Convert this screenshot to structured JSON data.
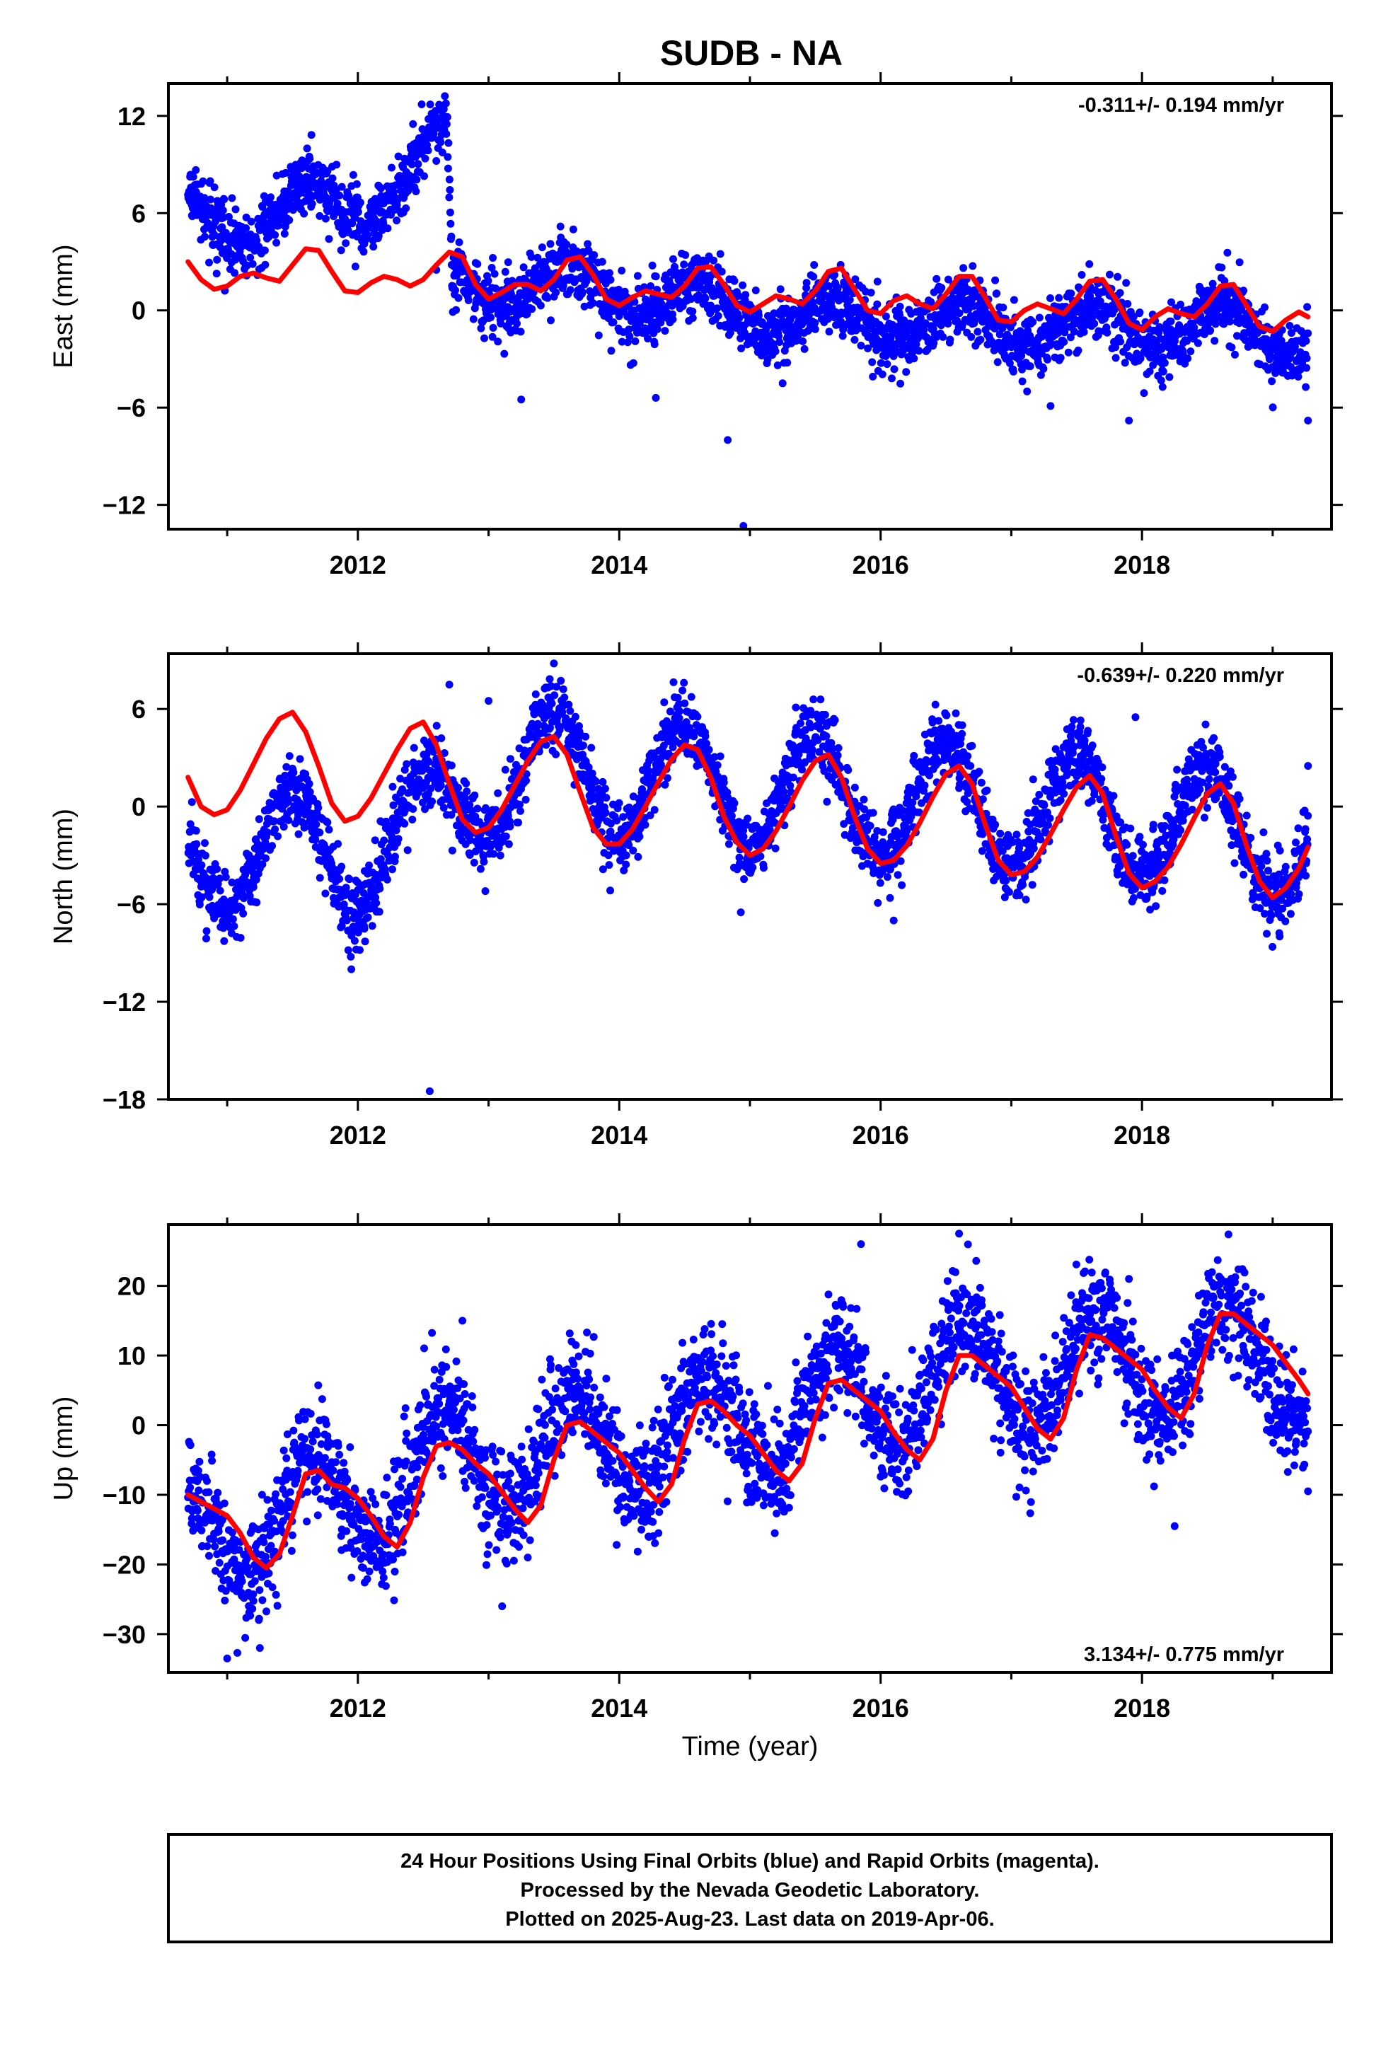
{
  "title": "SUDB - NA",
  "colors": {
    "final_orbits": "#0000ff",
    "fit": "#ff0000",
    "frame": "#000000"
  },
  "footer": {
    "line1": "24 Hour Positions Using Final Orbits (blue) and Rapid Orbits (magenta).",
    "line2": "Processed by the Nevada Geodetic Laboratory.",
    "line3": "Plotted on 2025-Aug-23. Last data on 2019-Apr-06."
  },
  "chart_data": [
    {
      "type": "scatter",
      "ylabel": "East (mm)",
      "xlabel": "",
      "rate": "-0.311+/- 0.194 mm/yr",
      "rate_position": "top-right",
      "xlim": [
        2010.55,
        2019.45
      ],
      "ylim": [
        -13.5,
        14
      ],
      "x_ticks": [
        "2012",
        "2014",
        "2016",
        "2018"
      ],
      "y_ticks": [
        "12",
        "6",
        "0",
        "-6",
        "-12"
      ],
      "data_range": [
        2010.7,
        2019.27
      ],
      "trend": [
        [
          2010.7,
          6.0
        ],
        [
          2011.2,
          5.2
        ],
        [
          2011.6,
          6.6
        ],
        [
          2012.0,
          6.3
        ],
        [
          2012.3,
          7.8
        ],
        [
          2012.68,
          10.5
        ],
        [
          2012.72,
          1.5
        ],
        [
          2013.5,
          1.7
        ],
        [
          2014.5,
          0.6
        ],
        [
          2015.5,
          -0.6
        ],
        [
          2016.5,
          -0.8
        ],
        [
          2017.5,
          -1.0
        ],
        [
          2018.5,
          -1.0
        ],
        [
          2019.27,
          -1.7
        ]
      ],
      "seasonal": {
        "amp": 1.3,
        "phase": 0.62
      },
      "scatter_sd": 1.0,
      "series": [
        {
          "name": "Final Orbits",
          "kind": "points",
          "outliers": [
            [
              2013.25,
              -5.5
            ],
            [
              2014.28,
              -5.4
            ],
            [
              2014.83,
              -8.0
            ],
            [
              2014.95,
              -13.3
            ],
            [
              2015.25,
              -4.5
            ],
            [
              2017.3,
              -5.9
            ],
            [
              2017.9,
              -6.8
            ],
            [
              2019.27,
              -6.8
            ],
            [
              2012.6,
              2.5
            ]
          ]
        },
        {
          "name": "Model Fit",
          "kind": "line",
          "x": [
            2010.7,
            2010.8,
            2010.9,
            2011.0,
            2011.1,
            2011.2,
            2011.3,
            2011.4,
            2011.5,
            2011.6,
            2011.7,
            2011.8,
            2011.9,
            2012.0,
            2012.1,
            2012.2,
            2012.3,
            2012.4,
            2012.5,
            2012.6,
            2012.7,
            2012.8,
            2012.9,
            2013.0,
            2013.1,
            2013.2,
            2013.3,
            2013.4,
            2013.5,
            2013.6,
            2013.7,
            2013.8,
            2013.9,
            2014.0,
            2014.1,
            2014.2,
            2014.3,
            2014.4,
            2014.5,
            2014.6,
            2014.7,
            2014.8,
            2014.9,
            2015.0,
            2015.1,
            2015.2,
            2015.3,
            2015.4,
            2015.5,
            2015.6,
            2015.7,
            2015.8,
            2015.9,
            2016.0,
            2016.1,
            2016.2,
            2016.3,
            2016.4,
            2016.5,
            2016.6,
            2016.7,
            2016.8,
            2016.9,
            2017.0,
            2017.1,
            2017.2,
            2017.3,
            2017.4,
            2017.5,
            2017.6,
            2017.7,
            2017.8,
            2017.9,
            2018.0,
            2018.1,
            2018.2,
            2018.3,
            2018.4,
            2018.5,
            2018.6,
            2018.7,
            2018.8,
            2018.9,
            2019.0,
            2019.1,
            2019.2,
            2019.27
          ],
          "y": [
            3.0,
            1.9,
            1.3,
            1.5,
            2.1,
            2.3,
            2.0,
            1.8,
            2.8,
            3.8,
            3.7,
            2.4,
            1.2,
            1.1,
            1.7,
            2.1,
            1.9,
            1.5,
            1.9,
            2.8,
            3.6,
            3.3,
            1.6,
            0.7,
            1.1,
            1.6,
            1.6,
            1.2,
            1.9,
            3.1,
            3.3,
            2.2,
            0.7,
            0.3,
            0.8,
            1.2,
            1.0,
            0.8,
            1.5,
            2.6,
            2.7,
            1.6,
            0.3,
            -0.1,
            0.4,
            0.9,
            0.7,
            0.4,
            1.2,
            2.4,
            2.6,
            1.3,
            0.0,
            -0.2,
            0.6,
            0.9,
            0.4,
            0.1,
            1.0,
            2.1,
            2.1,
            0.8,
            -0.6,
            -0.7,
            0.0,
            0.4,
            0.1,
            -0.2,
            0.7,
            1.8,
            1.9,
            0.7,
            -0.8,
            -1.2,
            -0.4,
            0.1,
            -0.2,
            -0.4,
            0.4,
            1.5,
            1.6,
            0.3,
            -1.0,
            -1.3,
            -0.6,
            -0.1,
            -0.4
          ]
        }
      ]
    },
    {
      "type": "scatter",
      "ylabel": "North (mm)",
      "xlabel": "",
      "rate": "-0.639+/- 0.220 mm/yr",
      "rate_position": "top-right",
      "xlim": [
        2010.55,
        2019.45
      ],
      "ylim": [
        -18,
        9.4
      ],
      "x_ticks": [
        "2012",
        "2014",
        "2016",
        "2018"
      ],
      "y_ticks": [
        "6",
        "0",
        "-6",
        "-12",
        "-18"
      ],
      "data_range": [
        2010.7,
        2019.27
      ],
      "trend": [
        [
          2010.7,
          -3.0
        ],
        [
          2011.3,
          -2.5
        ],
        [
          2011.9,
          -3.0
        ],
        [
          2012.5,
          -1.5
        ],
        [
          2012.9,
          1.5
        ],
        [
          2013.5,
          2.2
        ],
        [
          2014.5,
          1.5
        ],
        [
          2015.5,
          0.8
        ],
        [
          2016.5,
          0.3
        ],
        [
          2017.5,
          -0.5
        ],
        [
          2018.5,
          -1.1
        ],
        [
          2019.27,
          -2.8
        ]
      ],
      "seasonal": {
        "amp": 3.6,
        "phase": 0.5
      },
      "scatter_sd": 1.1,
      "series": [
        {
          "name": "Final Orbits",
          "kind": "points",
          "outliers": [
            [
              2012.55,
              -17.5
            ],
            [
              2012.7,
              7.5
            ],
            [
              2013.0,
              6.5
            ],
            [
              2013.5,
              8.8
            ],
            [
              2014.93,
              -6.5
            ],
            [
              2016.1,
              -7.0
            ],
            [
              2017.53,
              5.3
            ],
            [
              2017.95,
              5.5
            ],
            [
              2019.27,
              2.5
            ],
            [
              2011.95,
              -10.0
            ]
          ]
        },
        {
          "name": "Model Fit",
          "kind": "line",
          "x": [
            2010.7,
            2010.8,
            2010.9,
            2011.0,
            2011.1,
            2011.2,
            2011.3,
            2011.4,
            2011.5,
            2011.6,
            2011.7,
            2011.8,
            2011.9,
            2012.0,
            2012.1,
            2012.2,
            2012.3,
            2012.4,
            2012.5,
            2012.6,
            2012.7,
            2012.8,
            2012.9,
            2013.0,
            2013.1,
            2013.2,
            2013.3,
            2013.4,
            2013.5,
            2013.6,
            2013.7,
            2013.8,
            2013.9,
            2014.0,
            2014.1,
            2014.2,
            2014.3,
            2014.4,
            2014.5,
            2014.6,
            2014.7,
            2014.8,
            2014.9,
            2015.0,
            2015.1,
            2015.2,
            2015.3,
            2015.4,
            2015.5,
            2015.6,
            2015.7,
            2015.8,
            2015.9,
            2016.0,
            2016.1,
            2016.2,
            2016.3,
            2016.4,
            2016.5,
            2016.6,
            2016.7,
            2016.8,
            2016.9,
            2017.0,
            2017.1,
            2017.2,
            2017.3,
            2017.4,
            2017.5,
            2017.6,
            2017.7,
            2017.8,
            2017.9,
            2018.0,
            2018.1,
            2018.2,
            2018.3,
            2018.4,
            2018.5,
            2018.6,
            2018.7,
            2018.8,
            2018.9,
            2019.0,
            2019.1,
            2019.2,
            2019.27
          ],
          "y": [
            1.8,
            0.0,
            -0.5,
            -0.2,
            1.0,
            2.6,
            4.2,
            5.4,
            5.8,
            4.6,
            2.5,
            0.2,
            -0.9,
            -0.6,
            0.5,
            2.0,
            3.5,
            4.8,
            5.2,
            3.8,
            1.4,
            -0.8,
            -1.6,
            -1.3,
            -0.2,
            1.3,
            2.8,
            4.0,
            4.3,
            3.2,
            0.9,
            -1.3,
            -2.3,
            -2.3,
            -1.4,
            0.0,
            1.5,
            2.9,
            3.8,
            3.5,
            1.8,
            -0.6,
            -2.2,
            -3.0,
            -2.6,
            -1.5,
            0.0,
            1.6,
            2.8,
            3.2,
            1.8,
            -0.6,
            -2.6,
            -3.5,
            -3.3,
            -2.4,
            -1.0,
            0.6,
            2.0,
            2.5,
            1.4,
            -1.1,
            -3.3,
            -4.2,
            -4.0,
            -3.1,
            -1.7,
            -0.2,
            1.2,
            1.9,
            0.8,
            -1.8,
            -4.1,
            -5.0,
            -4.6,
            -3.7,
            -2.3,
            -0.7,
            0.8,
            1.4,
            0.2,
            -2.4,
            -4.6,
            -5.6,
            -5.0,
            -3.8,
            -2.5
          ]
        }
      ]
    },
    {
      "type": "scatter",
      "ylabel": "Up (mm)",
      "xlabel": "Time (year)",
      "rate": "3.134+/- 0.775 mm/yr",
      "rate_position": "bottom-right",
      "xlim": [
        2010.55,
        2019.45
      ],
      "ylim": [
        -35.5,
        28.8
      ],
      "x_ticks": [
        "2012",
        "2014",
        "2016",
        "2018"
      ],
      "y_ticks": [
        "20",
        "10",
        "0",
        "-10",
        "-20",
        "-30"
      ],
      "data_range": [
        2010.7,
        2019.27
      ],
      "trend": [
        [
          2010.7,
          -15.5
        ],
        [
          2011.5,
          -12.5
        ],
        [
          2012.5,
          -7.0
        ],
        [
          2013.5,
          -3.0
        ],
        [
          2014.5,
          -1.0
        ],
        [
          2015.5,
          2.0
        ],
        [
          2016.5,
          7.0
        ],
        [
          2017.5,
          7.5
        ],
        [
          2018.5,
          9.5
        ],
        [
          2019.27,
          8.5
        ]
      ],
      "seasonal": {
        "amp": 8.0,
        "phase": 0.65
      },
      "scatter_sd": 4.0,
      "series": [
        {
          "name": "Final Orbits",
          "kind": "points",
          "outliers": [
            [
              2011.0,
              -33.5
            ],
            [
              2011.25,
              -32.0
            ],
            [
              2012.8,
              15.0
            ],
            [
              2013.3,
              -19.0
            ],
            [
              2015.85,
              26.0
            ],
            [
              2016.6,
              27.5
            ],
            [
              2017.9,
              21.0
            ],
            [
              2018.25,
              -14.5
            ],
            [
              2019.27,
              -9.5
            ],
            [
              2014.3,
              -15.5
            ]
          ]
        },
        {
          "name": "Model Fit",
          "kind": "line",
          "x": [
            2010.7,
            2010.8,
            2010.9,
            2011.0,
            2011.1,
            2011.2,
            2011.3,
            2011.4,
            2011.5,
            2011.6,
            2011.7,
            2011.8,
            2011.9,
            2012.0,
            2012.1,
            2012.2,
            2012.3,
            2012.4,
            2012.5,
            2012.6,
            2012.7,
            2012.8,
            2012.9,
            2013.0,
            2013.1,
            2013.2,
            2013.3,
            2013.4,
            2013.5,
            2013.6,
            2013.7,
            2013.8,
            2013.9,
            2014.0,
            2014.1,
            2014.2,
            2014.3,
            2014.4,
            2014.5,
            2014.6,
            2014.7,
            2014.8,
            2014.9,
            2015.0,
            2015.1,
            2015.2,
            2015.3,
            2015.4,
            2015.5,
            2015.6,
            2015.7,
            2015.8,
            2015.9,
            2016.0,
            2016.1,
            2016.2,
            2016.3,
            2016.4,
            2016.5,
            2016.6,
            2016.7,
            2016.8,
            2016.9,
            2017.0,
            2017.1,
            2017.2,
            2017.3,
            2017.4,
            2017.5,
            2017.6,
            2017.7,
            2017.8,
            2017.9,
            2018.0,
            2018.1,
            2018.2,
            2018.3,
            2018.4,
            2018.5,
            2018.6,
            2018.7,
            2018.8,
            2018.9,
            2019.0,
            2019.1,
            2019.2,
            2019.27
          ],
          "y": [
            -10.0,
            -11.0,
            -12.0,
            -13.0,
            -15.5,
            -19.0,
            -20.5,
            -18.5,
            -13.0,
            -7.0,
            -6.5,
            -8.5,
            -9.0,
            -10.5,
            -13.0,
            -16.0,
            -17.5,
            -14.0,
            -7.5,
            -3.0,
            -2.5,
            -3.5,
            -5.5,
            -7.0,
            -9.5,
            -12.0,
            -14.0,
            -11.5,
            -5.0,
            0.0,
            0.5,
            -1.0,
            -2.5,
            -4.0,
            -6.5,
            -9.0,
            -11.0,
            -8.5,
            -2.0,
            3.0,
            3.5,
            2.0,
            0.0,
            -1.5,
            -4.0,
            -6.5,
            -8.0,
            -5.5,
            1.0,
            6.0,
            6.5,
            5.0,
            3.5,
            2.0,
            -1.0,
            -3.5,
            -5.0,
            -2.0,
            5.0,
            10.0,
            10.0,
            8.5,
            7.0,
            5.5,
            2.5,
            -0.5,
            -2.0,
            1.0,
            8.0,
            13.0,
            12.5,
            11.0,
            9.5,
            8.0,
            5.0,
            2.5,
            1.0,
            4.5,
            11.5,
            16.0,
            16.0,
            14.5,
            13.0,
            11.5,
            9.0,
            6.5,
            4.5
          ]
        }
      ]
    }
  ]
}
